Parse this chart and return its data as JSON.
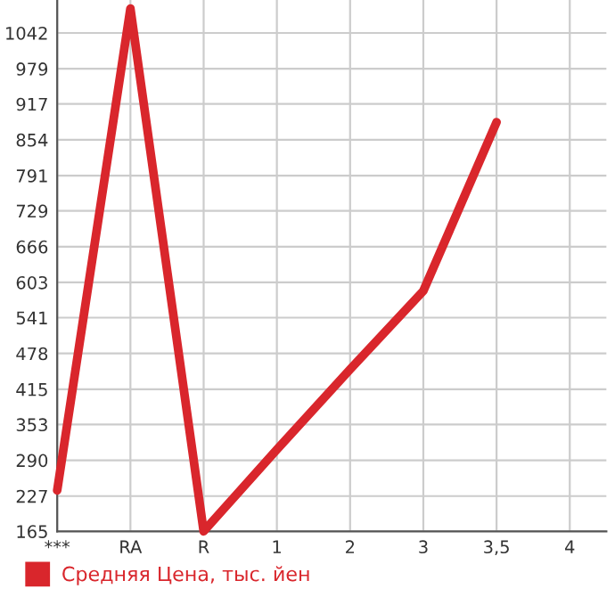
{
  "chart_data": {
    "type": "line",
    "categories": [
      "***",
      "RA",
      "R",
      "1",
      "2",
      "3",
      "3,5",
      "4"
    ],
    "series": [
      {
        "name": "Средняя Цена, тыс. йен",
        "color": "#d9262c",
        "values": [
          237,
          1085,
          165,
          309,
          450,
          588,
          885,
          null
        ]
      }
    ],
    "ylim": [
      165,
      1100
    ],
    "yticks": [
      165,
      227,
      290,
      353,
      415,
      478,
      541,
      603,
      666,
      729,
      791,
      854,
      917,
      979,
      1042
    ],
    "grid": true,
    "legend": "bottom left",
    "marker": "none",
    "line_style": "solid"
  }
}
